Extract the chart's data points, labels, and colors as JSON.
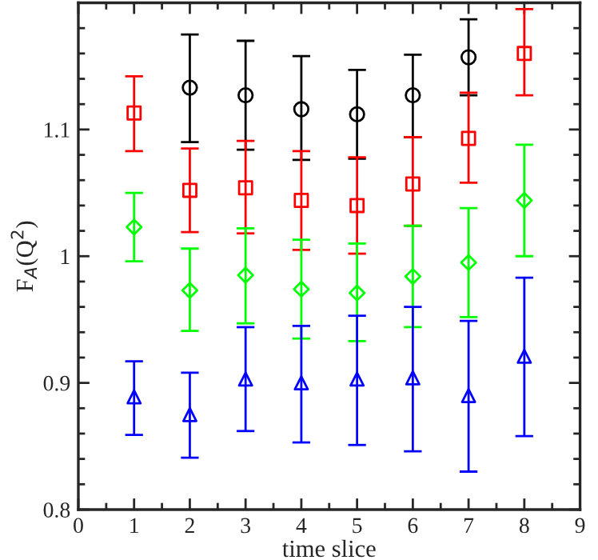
{
  "chart_data": {
    "type": "scatter",
    "xlabel": "time slice",
    "ylabel": "F$_{A}$(Q$^{2}$)",
    "xlim": [
      0,
      9
    ],
    "ylim": [
      0.8,
      1.2
    ],
    "xticks": [
      0,
      {
        "value": 0.5,
        "label": null
      },
      1,
      {
        "value": 1.5,
        "label": null
      },
      2,
      {
        "value": 2.5,
        "label": null
      },
      3,
      {
        "value": 3.5,
        "label": null
      },
      4,
      {
        "value": 4.5,
        "label": null
      },
      5,
      {
        "value": 5.5,
        "label": null
      },
      6,
      {
        "value": 6.5,
        "label": null
      },
      7,
      {
        "value": 7.5,
        "label": null
      },
      8,
      {
        "value": 8.5,
        "label": null
      },
      9
    ],
    "yticks": [
      0.8,
      {
        "value": 0.82,
        "label": null
      },
      {
        "value": 0.84,
        "label": null
      },
      {
        "value": 0.86,
        "label": null
      },
      {
        "value": 0.88,
        "label": null
      },
      0.9,
      {
        "value": 0.92,
        "label": null
      },
      {
        "value": 0.94,
        "label": null
      },
      {
        "value": 0.96,
        "label": null
      },
      {
        "value": 0.98,
        "label": null
      },
      1,
      {
        "value": 1.02,
        "label": null
      },
      {
        "value": 1.04,
        "label": null
      },
      {
        "value": 1.06,
        "label": null
      },
      {
        "value": 1.08,
        "label": null
      },
      1.1,
      {
        "value": 1.12,
        "label": null
      },
      {
        "value": 1.14,
        "label": null
      },
      {
        "value": 1.16,
        "label": null
      },
      {
        "value": 1.18,
        "label": null
      },
      {
        "value": 1.2,
        "label": null
      }
    ],
    "grid": false,
    "legend": false,
    "series": [
      {
        "color": "#000000",
        "marker": "circle",
        "x": [
          2,
          3,
          4,
          5,
          6,
          7
        ],
        "values": [
          1.133,
          1.127,
          1.116,
          1.112,
          1.127,
          1.157
        ],
        "errors": [
          [
            1.09,
            1.175
          ],
          [
            1.084,
            1.17
          ],
          [
            1.076,
            1.158
          ],
          [
            1.077,
            1.147
          ],
          [
            1.094,
            1.159
          ],
          [
            1.127,
            1.187
          ]
        ]
      },
      {
        "color": "#ff0000",
        "marker": "square",
        "x": [
          1,
          2,
          3,
          4,
          5,
          6,
          7,
          8
        ],
        "values": [
          1.113,
          1.052,
          1.054,
          1.044,
          1.04,
          1.057,
          1.093,
          1.16
        ],
        "errors": [
          [
            1.083,
            1.142
          ],
          [
            1.019,
            1.085
          ],
          [
            1.018,
            1.091
          ],
          [
            1.005,
            1.083
          ],
          [
            1.002,
            1.078
          ],
          [
            1.024,
            1.094
          ],
          [
            1.058,
            1.129
          ],
          [
            1.127,
            1.195
          ]
        ]
      },
      {
        "color": "#00ff00",
        "marker": "diamond",
        "x": [
          1,
          2,
          3,
          4,
          5,
          6,
          7,
          8
        ],
        "values": [
          1.023,
          0.973,
          0.985,
          0.974,
          0.971,
          0.984,
          0.995,
          1.044
        ],
        "errors": [
          [
            0.996,
            1.05
          ],
          [
            0.941,
            1.006
          ],
          [
            0.947,
            1.022
          ],
          [
            0.935,
            1.013
          ],
          [
            0.933,
            1.01
          ],
          [
            0.944,
            1.024
          ],
          [
            0.952,
            1.038
          ],
          [
            1.0,
            1.088
          ]
        ]
      },
      {
        "color": "#0000ff",
        "marker": "triangle",
        "x": [
          1,
          2,
          3,
          4,
          5,
          6,
          7,
          8
        ],
        "values": [
          0.889,
          0.875,
          0.903,
          0.9,
          0.903,
          0.904,
          0.89,
          0.921
        ],
        "errors": [
          [
            0.859,
            0.917
          ],
          [
            0.841,
            0.908
          ],
          [
            0.862,
            0.944
          ],
          [
            0.853,
            0.945
          ],
          [
            0.851,
            0.953
          ],
          [
            0.846,
            0.96
          ],
          [
            0.83,
            0.949
          ],
          [
            0.858,
            0.983
          ]
        ]
      }
    ]
  }
}
